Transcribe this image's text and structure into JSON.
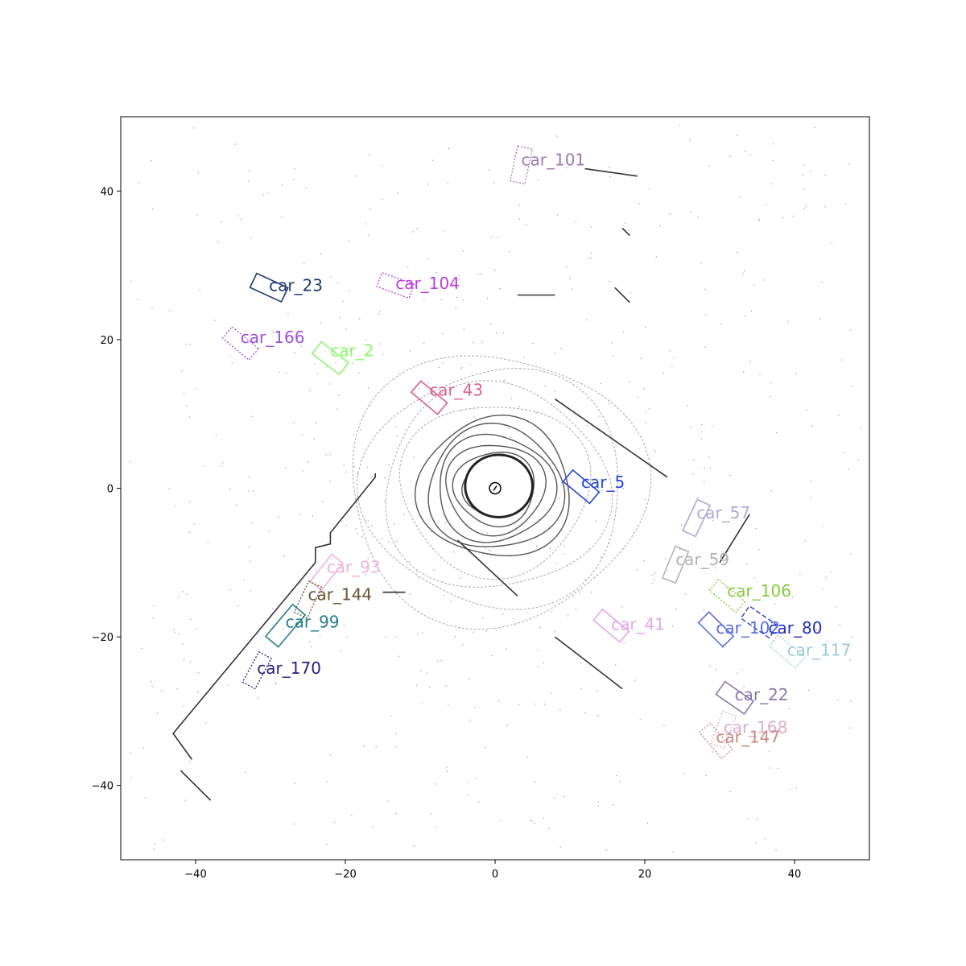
{
  "chart_data": {
    "type": "scatter",
    "title": "",
    "xlabel": "",
    "ylabel": "",
    "xlim": [
      -50,
      50
    ],
    "ylim": [
      -50,
      50
    ],
    "x_ticks": [
      -40,
      -20,
      0,
      20,
      40
    ],
    "y_ticks": [
      -40,
      -20,
      0,
      20,
      40
    ],
    "x_tick_labels": [
      "−40",
      "−20",
      "0",
      "20",
      "40"
    ],
    "y_tick_labels": [
      "−40",
      "−20",
      "0",
      "20",
      "40"
    ],
    "grid": false,
    "ego": {
      "x": 0,
      "y": 0
    },
    "boxes": [
      {
        "label": "car_101",
        "x": 3.5,
        "y": 43.5,
        "length": 4.8,
        "width": 2.0,
        "heading_deg": 78,
        "color": "#9c7bb0",
        "style": "dotted",
        "label_x": 3.5,
        "label_y": 44.2
      },
      {
        "label": "car_23",
        "x": -30.2,
        "y": 27.0,
        "length": 4.6,
        "width": 2.1,
        "heading_deg": -25,
        "color": "#1f3a6b",
        "style": "solid",
        "label_x": -30.2,
        "label_y": 27.3
      },
      {
        "label": "car_104",
        "x": -13.3,
        "y": 27.3,
        "length": 4.6,
        "width": 2.0,
        "heading_deg": -20,
        "color": "#c03ce0",
        "style": "dotted",
        "label_x": -13.3,
        "label_y": 27.6
      },
      {
        "label": "car_166",
        "x": -34.0,
        "y": 19.5,
        "length": 4.6,
        "width": 2.0,
        "heading_deg": -40,
        "color": "#9e4fdf",
        "style": "dotted",
        "label_x": -34.0,
        "label_y": 20.3
      },
      {
        "label": "car_2",
        "x": -22.0,
        "y": 17.5,
        "length": 4.6,
        "width": 2.0,
        "heading_deg": -38,
        "color": "#8ef56b",
        "style": "solid",
        "label_x": -22.0,
        "label_y": 18.5
      },
      {
        "label": "car_43",
        "x": -8.8,
        "y": 12.2,
        "length": 4.6,
        "width": 2.0,
        "heading_deg": -40,
        "color": "#d9618f",
        "style": "solid",
        "label_x": -8.8,
        "label_y": 13.2
      },
      {
        "label": "car_5",
        "x": 11.5,
        "y": 0.2,
        "length": 4.6,
        "width": 2.0,
        "heading_deg": -40,
        "color": "#2448d6",
        "style": "solid",
        "label_x": 11.5,
        "label_y": 0.8
      },
      {
        "label": "car_57",
        "x": 26.9,
        "y": -4.0,
        "length": 4.6,
        "width": 1.9,
        "heading_deg": 65,
        "color": "#b3a8d8",
        "style": "solid",
        "label_x": 26.9,
        "label_y": -3.3
      },
      {
        "label": "car_59",
        "x": 24.1,
        "y": -10.3,
        "length": 4.6,
        "width": 1.9,
        "heading_deg": 68,
        "color": "#b3b3b3",
        "style": "solid",
        "label_x": 24.1,
        "label_y": -9.6
      },
      {
        "label": "car_93",
        "x": -22.5,
        "y": -11.3,
        "length": 4.6,
        "width": 1.9,
        "heading_deg": 52,
        "color": "#f0b3d8",
        "style": "solid",
        "label_x": -22.5,
        "label_y": -10.6
      },
      {
        "label": "car_106",
        "x": 31.0,
        "y": -14.5,
        "length": 4.6,
        "width": 1.9,
        "heading_deg": -40,
        "color": "#86c93b",
        "style": "dotted",
        "label_x": 31.0,
        "label_y": -13.8
      },
      {
        "label": "car_144",
        "x": -25.0,
        "y": -15.0,
        "length": 4.6,
        "width": 1.9,
        "heading_deg": 65,
        "color": "#6b5333",
        "style": "dotted",
        "label_x": -25.0,
        "label_y": -14.3
      },
      {
        "label": "car_99",
        "x": -28.0,
        "y": -18.5,
        "length": 5.6,
        "width": 2.2,
        "heading_deg": 50,
        "color": "#247e8c",
        "style": "solid",
        "label_x": -28.0,
        "label_y": -18.0
      },
      {
        "label": "car_41",
        "x": 15.5,
        "y": -18.5,
        "length": 4.6,
        "width": 1.9,
        "heading_deg": -40,
        "color": "#e2a8ea",
        "style": "solid",
        "label_x": 15.5,
        "label_y": -18.3
      },
      {
        "label": "car_102",
        "x": 29.5,
        "y": -19.0,
        "length": 4.6,
        "width": 2.0,
        "heading_deg": -45,
        "color": "#5b6ee0",
        "style": "solid",
        "label_x": 29.5,
        "label_y": -18.8
      },
      {
        "label": "car_80",
        "x": 35.3,
        "y": -18.0,
        "length": 4.6,
        "width": 2.0,
        "heading_deg": -35,
        "color": "#2130c0",
        "style": "dashed",
        "label_x": 36.5,
        "label_y": -18.8
      },
      {
        "label": "car_117",
        "x": 39.0,
        "y": -22.0,
        "length": 4.6,
        "width": 1.9,
        "heading_deg": -40,
        "color": "#9bcbd6",
        "style": "dotted",
        "label_x": 39.0,
        "label_y": -21.8
      },
      {
        "label": "car_170",
        "x": -31.8,
        "y": -24.5,
        "length": 4.6,
        "width": 1.9,
        "heading_deg": 62,
        "color": "#261f80",
        "style": "dotted",
        "label_x": -31.8,
        "label_y": -24.2
      },
      {
        "label": "car_22",
        "x": 32.0,
        "y": -28.2,
        "length": 4.6,
        "width": 2.1,
        "heading_deg": -35,
        "color": "#8a7aa8",
        "style": "solid",
        "label_x": 32.0,
        "label_y": -27.8
      },
      {
        "label": "car_168",
        "x": 30.5,
        "y": -32.5,
        "length": 4.6,
        "width": 1.9,
        "heading_deg": 70,
        "color": "#d8b0cc",
        "style": "dotted",
        "label_x": 30.5,
        "label_y": -32.2
      },
      {
        "label": "car_147",
        "x": 29.5,
        "y": -34.0,
        "length": 4.6,
        "width": 1.9,
        "heading_deg": -50,
        "color": "#c98882",
        "style": "dotted",
        "label_x": 29.5,
        "label_y": -33.5
      }
    ]
  }
}
